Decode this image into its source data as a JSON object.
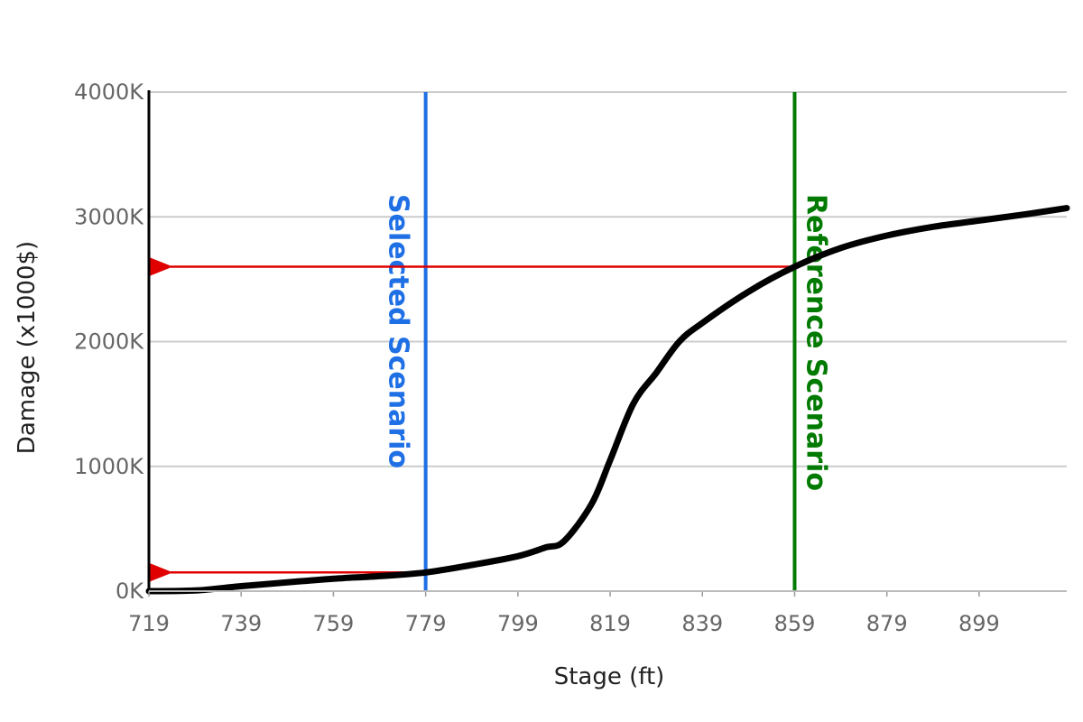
{
  "chart_data": {
    "type": "line",
    "xlabel": "Stage (ft)",
    "ylabel": "Damage (x1000$)",
    "xlim": [
      719,
      918
    ],
    "ylim": [
      0,
      4000
    ],
    "x_ticks": [
      "719",
      "739",
      "759",
      "779",
      "799",
      "819",
      "839",
      "859",
      "879",
      "899"
    ],
    "y_ticks": [
      "0K",
      "1000K",
      "2000K",
      "3000K",
      "4000K"
    ],
    "grid": "horizontal",
    "series": [
      {
        "color": "#000000",
        "x": [
          719,
          729,
          739,
          749,
          759,
          769,
          779,
          789,
          799,
          805,
          809,
          815,
          819,
          824,
          829,
          834,
          839,
          849,
          859,
          869,
          879,
          889,
          899,
          909,
          918
        ],
        "y": [
          0,
          5,
          40,
          70,
          100,
          120,
          150,
          210,
          280,
          350,
          400,
          700,
          1050,
          1500,
          1750,
          2000,
          2150,
          2400,
          2600,
          2750,
          2850,
          2920,
          2970,
          3020,
          3070
        ]
      }
    ],
    "annotations": [
      {
        "type": "vline",
        "x": 779,
        "label": "Selected Scenario",
        "color": "#1f6fe5"
      },
      {
        "type": "vline",
        "x": 859,
        "label": "Reference Scenario",
        "color": "#007a00"
      },
      {
        "type": "arrow-to-y-axis",
        "x": 779,
        "y": 150,
        "color": "#e00000"
      },
      {
        "type": "arrow-to-y-axis",
        "x": 859,
        "y": 2600,
        "color": "#e00000"
      }
    ]
  }
}
